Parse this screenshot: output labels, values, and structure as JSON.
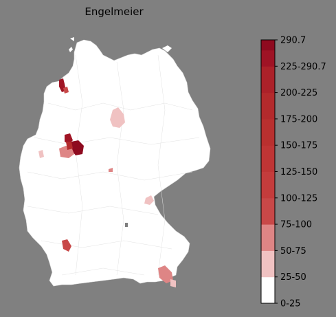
{
  "title": "Engelmeier",
  "legend": {
    "labels": [
      "0-25",
      "25-50",
      "50-75",
      "75-100",
      "100-125",
      "125-150",
      "150-175",
      "175-200",
      "200-225",
      "225-290.7",
      "290.7"
    ],
    "bins": [
      {
        "label": "0-25",
        "color": "#ffffff"
      },
      {
        "label": "25-50",
        "color": "#f0c2c2"
      },
      {
        "label": "50-75",
        "color": "#de8585"
      },
      {
        "label": "75-100",
        "color": "#c84848"
      },
      {
        "label": "100-125",
        "color": "#c43c3c"
      },
      {
        "label": "125-150",
        "color": "#bf3535"
      },
      {
        "label": "150-175",
        "color": "#b9302f"
      },
      {
        "label": "175-200",
        "color": "#b32a2c"
      },
      {
        "label": "200-225",
        "color": "#ac2129"
      },
      {
        "label": "225-290.7",
        "color": "#9f1325"
      }
    ],
    "top_color": "#8e0a1f"
  },
  "regions": [
    {
      "name": "schleswig-holstein-west-coast",
      "color": "#a01525"
    },
    {
      "name": "hamburg-area",
      "color": "#c84848"
    },
    {
      "name": "hannover-area",
      "color": "#f0c2c2"
    },
    {
      "name": "guetersloh-area",
      "color": "#a01525"
    },
    {
      "name": "bielefeld-area",
      "color": "#8e0a1f"
    },
    {
      "name": "muenster-area",
      "color": "#de8585"
    },
    {
      "name": "dortmund-area",
      "color": "#b32a2c"
    },
    {
      "name": "aachen-area",
      "color": "#f0c2c2"
    },
    {
      "name": "hessen-spot",
      "color": "#de8585"
    },
    {
      "name": "bayreuth-area",
      "color": "#f0c2c2"
    },
    {
      "name": "freiburg-area",
      "color": "#c84848"
    },
    {
      "name": "rosenheim-area",
      "color": "#de8585"
    },
    {
      "name": "berchtesgaden-area",
      "color": "#f0c2c2"
    },
    {
      "name": "bavaria-small",
      "color": "#7f7f7f"
    }
  ]
}
